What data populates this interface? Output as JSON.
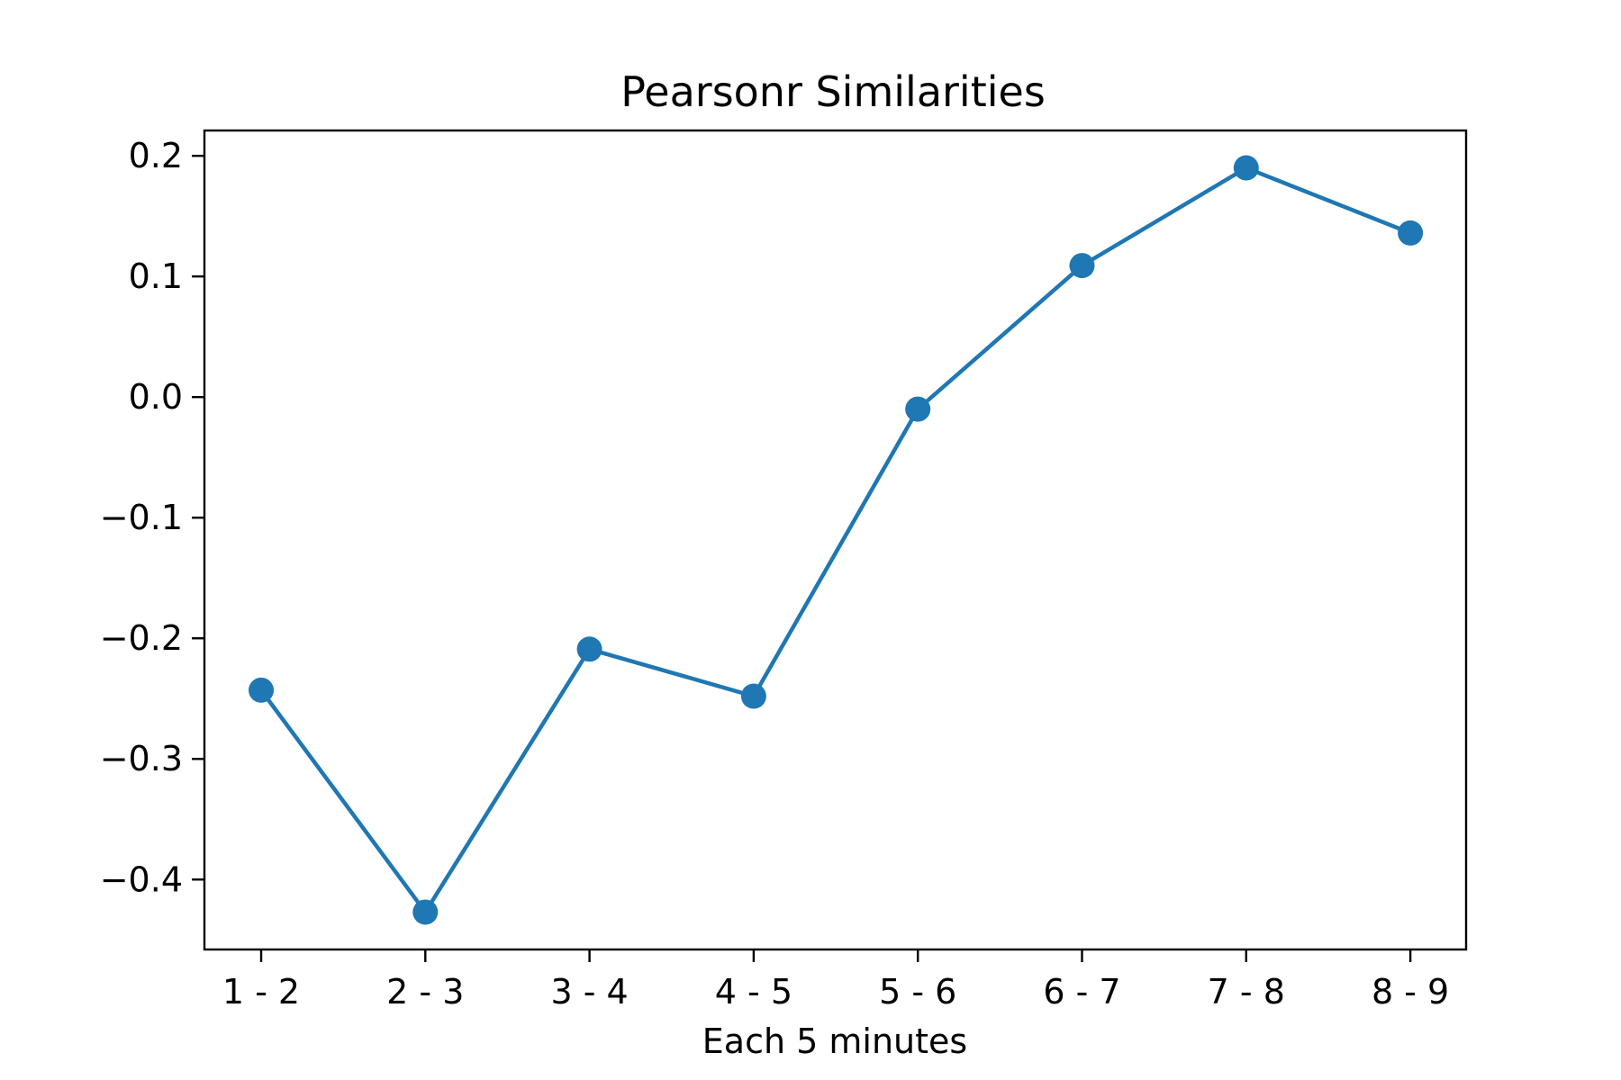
{
  "chart_data": {
    "type": "line",
    "title": "Pearsonr Similarities",
    "xlabel": "Each 5 minutes",
    "ylabel": "",
    "categories": [
      "1 - 2",
      "2 - 3",
      "3 - 4",
      "4 - 5",
      "5 - 6",
      "6 - 7",
      "7 - 8",
      "8 - 9"
    ],
    "series": [
      {
        "values": [
          -0.243,
          -0.427,
          -0.209,
          -0.248,
          -0.01,
          0.109,
          0.19,
          0.136
        ],
        "color": "#1f77b4",
        "marker": "circle"
      }
    ],
    "ylim": [
      -0.458,
      0.221
    ],
    "yticks": [
      0.2,
      0.1,
      0.0,
      -0.1,
      -0.2,
      -0.3,
      -0.4
    ],
    "ytick_labels": [
      "0.2",
      "0.1",
      "0.0",
      "−0.1",
      "−0.2",
      "−0.3",
      "−0.4"
    ],
    "grid": false,
    "legend": "none"
  }
}
